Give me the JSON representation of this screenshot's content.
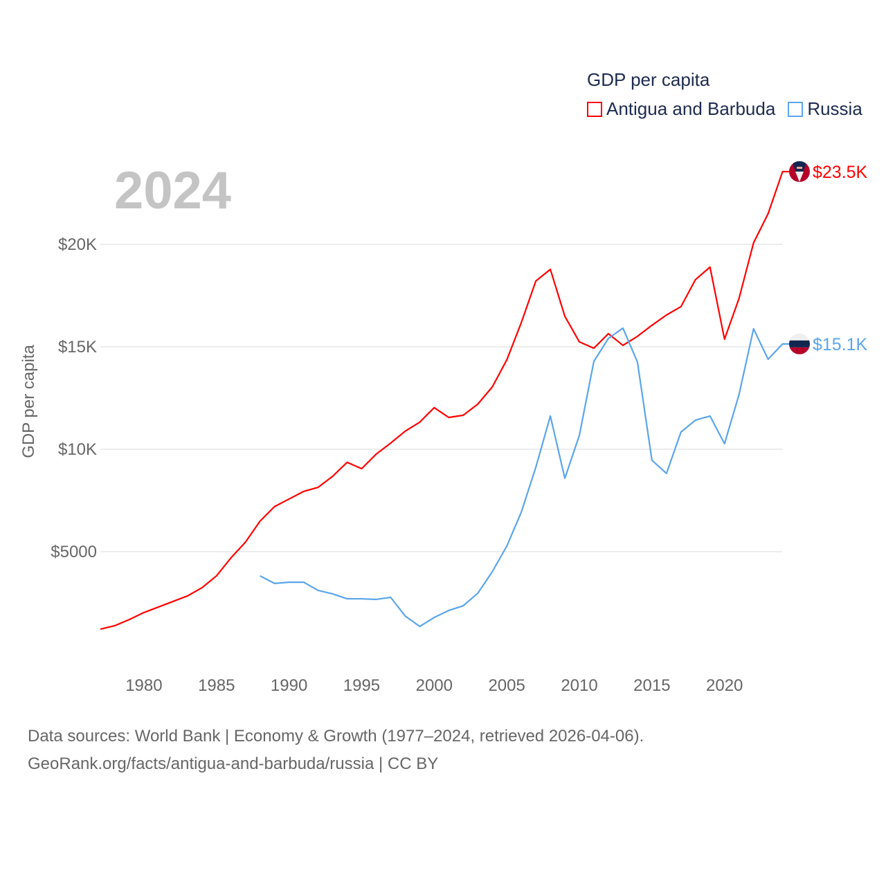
{
  "chart_data": {
    "type": "line",
    "title": "GDP per capita",
    "year_label": "2024",
    "xlabel": "",
    "ylabel": "GDP per capita",
    "xlim": [
      1977,
      2024
    ],
    "ylim": [
      0,
      24000
    ],
    "grid": true,
    "legend_position": "top-right",
    "x_ticks": [
      1980,
      1985,
      1990,
      1995,
      2000,
      2005,
      2010,
      2015,
      2020
    ],
    "x_tick_labels": [
      "1980",
      "1985",
      "1990",
      "1995",
      "2000",
      "2005",
      "2010",
      "2015",
      "2020"
    ],
    "y_ticks": [
      5000,
      10000,
      15000,
      20000
    ],
    "y_tick_labels": [
      "$5000",
      "$10K",
      "$15K",
      "$20K"
    ],
    "series": [
      {
        "name": "Antigua and Barbuda",
        "color": "#ff0000",
        "end_label": "$23.5K",
        "flag": "antigua-and-barbuda-flag",
        "x_start": 1977,
        "values": [
          1220,
          1390,
          1690,
          2030,
          2300,
          2570,
          2840,
          3240,
          3820,
          4700,
          5470,
          6490,
          7200,
          7570,
          7940,
          8140,
          8680,
          9360,
          9050,
          9760,
          10300,
          10880,
          11320,
          12030,
          11550,
          11660,
          12200,
          13040,
          14360,
          16180,
          18210,
          18780,
          16490,
          15240,
          14930,
          15640,
          15070,
          15510,
          16050,
          16550,
          16960,
          18280,
          18890,
          15370,
          17360,
          20070,
          21490,
          23550
        ]
      },
      {
        "name": "Russia",
        "color": "#5aa5eb",
        "end_label": "$15.1K",
        "flag": "russia-flag",
        "x_start": 1988,
        "values": [
          3820,
          3450,
          3510,
          3510,
          3110,
          2940,
          2700,
          2700,
          2670,
          2770,
          1860,
          1350,
          1790,
          2130,
          2360,
          2970,
          4020,
          5270,
          6930,
          9120,
          11620,
          8580,
          10680,
          14290,
          15410,
          15910,
          14260,
          9460,
          8820,
          10840,
          11420,
          11620,
          10270,
          12670,
          15880,
          14390,
          15140
        ]
      }
    ]
  },
  "footer": {
    "line1": "Data sources: World Bank | Economy & Growth (1977–2024, retrieved 2026-04-06).",
    "line2": "GeoRank.org/facts/antigua-and-barbuda/russia | CC BY"
  }
}
